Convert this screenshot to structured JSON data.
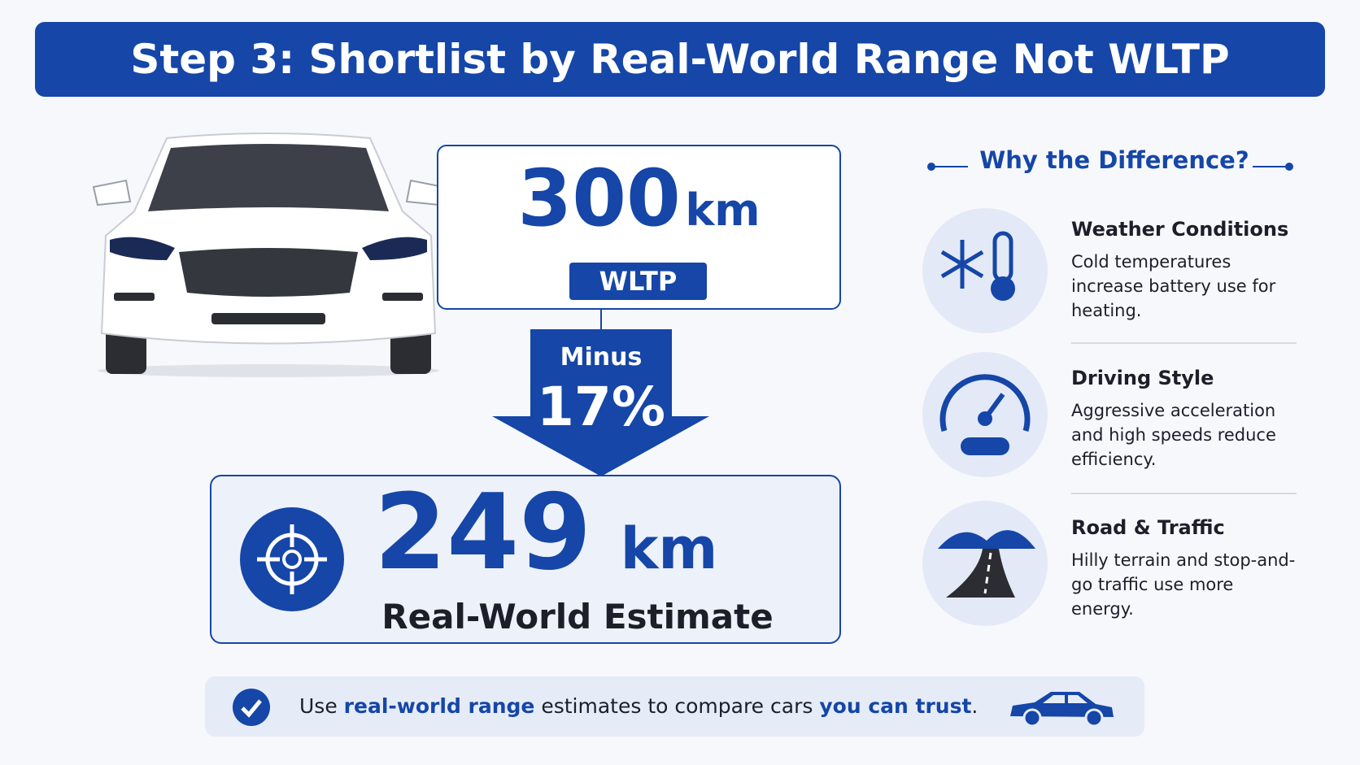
{
  "header": {
    "title": "Step 3: Shortlist by Real-World Range Not WLTP"
  },
  "wltp": {
    "value": 300,
    "unit": "km",
    "label": "WLTP"
  },
  "reduction": {
    "label": "Minus",
    "value": "17%"
  },
  "estimate": {
    "value": 249,
    "unit": "km",
    "label": "Real-World Estimate"
  },
  "factors": {
    "title": "Why the Difference?",
    "items": [
      {
        "title": "Weather Conditions",
        "description": "Cold temperatures increase battery use for heating."
      },
      {
        "title": "Driving Style",
        "description": "Aggressive acceleration and high speeds reduce efficiency."
      },
      {
        "title": "Road & Traffic",
        "description": "Hilly terrain and stop-and-go traffic use more energy."
      }
    ]
  },
  "footer": {
    "text_1": "Use",
    "highlight_1": "real-world range",
    "text_2": "estimates to compare cars",
    "highlight_2": "you can trust",
    "text_3": "."
  }
}
